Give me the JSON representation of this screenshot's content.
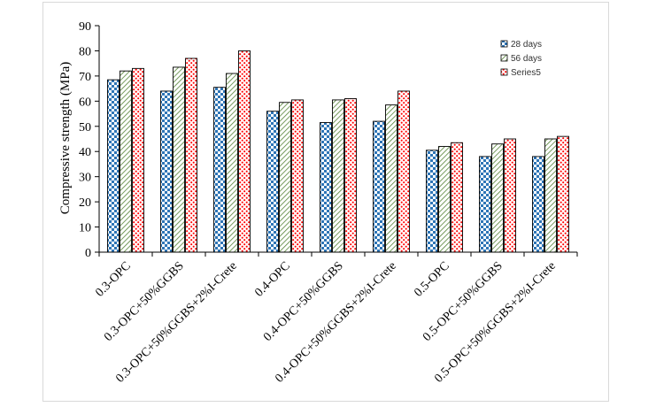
{
  "chart_data": {
    "type": "bar",
    "title": "",
    "xlabel": "",
    "ylabel": "Compressive strength (MPa)",
    "ylim": [
      0,
      90
    ],
    "yticks": [
      0,
      10,
      20,
      30,
      40,
      50,
      60,
      70,
      80,
      90
    ],
    "grid": false,
    "legend_position": "top-right",
    "categories": [
      "0.3-OPC",
      "0.3-OPC+50%GGBS",
      "0.3-OPC+50%GGBS+2%I-Crete",
      "0.4-OPC",
      "0.4-OPC+50%GGBS",
      "0.4-OPC+50%GGBS+2%I-Crete",
      "0.5-OPC",
      "0.5-OPC+50%GGBS",
      "0.5-OPC+50%GGBS+2%I-Crete"
    ],
    "series": [
      {
        "name": "28 days",
        "color": "#2e75b6",
        "pattern": "checker",
        "values": [
          68.5,
          64,
          65.5,
          56,
          51.5,
          52,
          40.5,
          38,
          38
        ]
      },
      {
        "name": "56 days",
        "color": "#548235",
        "pattern": "diagonal",
        "values": [
          72,
          73.5,
          71,
          59.5,
          60.5,
          58.5,
          42,
          43,
          45
        ]
      },
      {
        "name": "Series5",
        "color": "#ff0000",
        "pattern": "dots",
        "values": [
          73,
          77,
          80,
          60.5,
          61,
          64,
          43.5,
          45,
          46
        ]
      }
    ]
  }
}
